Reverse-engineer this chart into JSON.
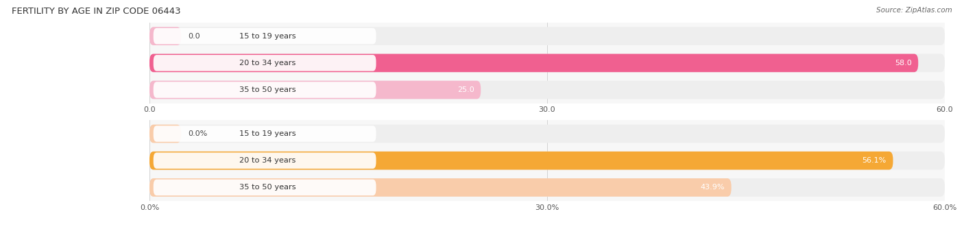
{
  "title": "FERTILITY BY AGE IN ZIP CODE 06443",
  "source": "Source: ZipAtlas.com",
  "top_chart": {
    "categories": [
      "15 to 19 years",
      "20 to 34 years",
      "35 to 50 years"
    ],
    "values": [
      0.0,
      58.0,
      25.0
    ],
    "value_labels": [
      "0.0",
      "58.0",
      "25.0"
    ],
    "xlim": [
      0,
      60
    ],
    "xticks": [
      0.0,
      30.0,
      60.0
    ],
    "xtick_labels": [
      "0.0",
      "30.0",
      "60.0"
    ],
    "bar_color": "#f06090",
    "bar_color_light": "#f5b8cc",
    "bar_bg_color": "#eeeeee",
    "label_bg": "#ffffff"
  },
  "bottom_chart": {
    "categories": [
      "15 to 19 years",
      "20 to 34 years",
      "35 to 50 years"
    ],
    "values": [
      0.0,
      56.1,
      43.9
    ],
    "value_labels": [
      "0.0%",
      "56.1%",
      "43.9%"
    ],
    "xlim": [
      0,
      60
    ],
    "xticks": [
      0.0,
      30.0,
      60.0
    ],
    "xtick_labels": [
      "0.0%",
      "30.0%",
      "60.0%"
    ],
    "bar_color": "#f5a835",
    "bar_color_light": "#f9ccaa",
    "bar_bg_color": "#eeeeee",
    "label_bg": "#ffffff"
  },
  "fig_width": 14.06,
  "fig_height": 3.31,
  "dpi": 100,
  "bg_color": "#f7f7f7"
}
